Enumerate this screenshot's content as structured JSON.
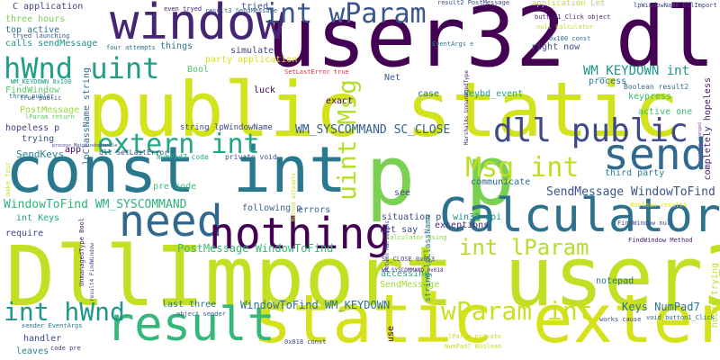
{
  "word_cloud": {
    "background": "#ffffff",
    "words": [
      {
        "text": "user32 dll",
        "color": "#440154"
      },
      {
        "text": "DllImport user32",
        "color": "#c2df23"
      },
      {
        "text": "public static",
        "color": "#d2e21b"
      },
      {
        "text": "static extern",
        "color": "#d5e21a"
      },
      {
        "text": "const int",
        "color": "#2a788e"
      },
      {
        "text": "p p",
        "color": "#7ad151"
      },
      {
        "text": "Calculator",
        "color": "#2c718e"
      },
      {
        "text": "window",
        "color": "#482475"
      },
      {
        "text": "result",
        "color": "#35b779"
      },
      {
        "text": "need",
        "color": "#31688e"
      },
      {
        "text": "nothing",
        "color": "#440154"
      },
      {
        "text": "extern int",
        "color": "#22a785"
      },
      {
        "text": "send",
        "color": "#31688e"
      },
      {
        "text": "dll public",
        "color": "#3e4989"
      },
      {
        "text": "Msg int",
        "color": "#bddf26"
      },
      {
        "text": "int wParam",
        "color": "#3a548c"
      },
      {
        "text": "hWnd uint",
        "color": "#1f9f88"
      },
      {
        "text": "int hWnd",
        "color": "#1f968b"
      },
      {
        "text": "wParam int",
        "color": "#c8e020"
      },
      {
        "text": "int lParam",
        "color": "#b5de2b"
      },
      {
        "text": "uint Msg",
        "color": "#b5de2b"
      },
      {
        "text": "WM_KEYDOWN int",
        "color": "#1f958b"
      },
      {
        "text": "WM_SYSCOMMAND SC_CLOSE",
        "color": "#355f8d"
      },
      {
        "text": "SendMessage WindowToFind",
        "color": "#3b528b"
      },
      {
        "text": "WindowToFind WM_SYSCOMMAND",
        "color": "#2eb37c"
      },
      {
        "text": "WindowToFind WM_KEYDOWN",
        "color": "#2d708e"
      },
      {
        "text": "PostMessage WindowToFind",
        "color": "#38b977"
      },
      {
        "text": "Keys NumPad7",
        "color": "#2c728e"
      },
      {
        "text": "SendKeys",
        "color": "#26828e"
      },
      {
        "text": "C application",
        "color": "#404688"
      },
      {
        "text": "three hours",
        "color": "#77d153"
      },
      {
        "text": "top active",
        "color": "#2d718e"
      },
      {
        "text": "calls sendMessage",
        "color": "#20928c"
      },
      {
        "text": "FindWindow",
        "color": "#58c765"
      },
      {
        "text": "PostMessage",
        "color": "#9bd93c"
      },
      {
        "text": "hopeless p",
        "color": "#424086"
      },
      {
        "text": "trying",
        "color": "#3b528b"
      },
      {
        "text": "int Keys",
        "color": "#22a785"
      },
      {
        "text": "require",
        "color": "#414487"
      },
      {
        "text": "handler",
        "color": "#3e4989"
      },
      {
        "text": "leaves",
        "color": "#26828e"
      },
      {
        "text": "lpClassName string",
        "color": "#31688e"
      },
      {
        "text": "Bool",
        "color": "#54c568"
      },
      {
        "text": "luck",
        "color": "#440154"
      },
      {
        "text": "simulate",
        "color": "#404688"
      },
      {
        "text": "things",
        "color": "#2a788e"
      },
      {
        "text": "party application",
        "color": "#d8e219"
      },
      {
        "text": "exact",
        "color": "#440154"
      },
      {
        "text": "tried",
        "color": "#3b528b"
      },
      {
        "text": "application Let",
        "color": "#c2df23"
      },
      {
        "text": "Net",
        "color": "#355f8d"
      },
      {
        "text": "case",
        "color": "#2d708e"
      },
      {
        "text": "keybd_event",
        "color": "#1fa187"
      },
      {
        "text": "right now",
        "color": "#3b528b"
      },
      {
        "text": "process",
        "color": "#2c728e"
      },
      {
        "text": "keypress",
        "color": "#38b977"
      },
      {
        "text": "active one",
        "color": "#3bbb75"
      },
      {
        "text": "Boolean result2",
        "color": "#31688e"
      },
      {
        "text": "completely hopeless",
        "color": "#481a6c"
      },
      {
        "text": "third party",
        "color": "#26828e"
      },
      {
        "text": "communicate",
        "color": "#31688e"
      },
      {
        "text": "win32 api",
        "color": "#20928c"
      },
      {
        "text": "exceptions",
        "color": "#472d7b"
      },
      {
        "text": "errors",
        "color": "#33638d"
      },
      {
        "text": "following p",
        "color": "#34608d"
      },
      {
        "text": "situation p",
        "color": "#3e4989"
      },
      {
        "text": "Let say",
        "color": "#3e4989"
      },
      {
        "text": "accessing",
        "color": "#22a785"
      },
      {
        "text": "notepad",
        "color": "#2c728e"
      },
      {
        "text": "see",
        "color": "#3e4989"
      },
      {
        "text": "pre code",
        "color": "#3bbb75"
      },
      {
        "text": "last three",
        "color": "#2a788e"
      },
      {
        "text": "SendMessage",
        "color": "#a2da37"
      },
      {
        "text": "use",
        "color": "#440154"
      },
      {
        "text": "string lpWindowName",
        "color": "#3e4989"
      },
      {
        "text": "dll SetLastError",
        "color": "#414487"
      },
      {
        "text": "NumPad7 code",
        "color": "#22a785"
      },
      {
        "text": "private void",
        "color": "#39568c"
      },
      {
        "text": "app",
        "color": "#440154"
      },
      {
        "text": "FindWindow null",
        "color": "#3e4989"
      },
      {
        "text": "Boolean result4",
        "color": "#d8e219"
      },
      {
        "text": "FindWindow Method",
        "color": "#482475"
      },
      {
        "text": "hours trying",
        "color": "#b5de2b"
      },
      {
        "text": "void button1_Click",
        "color": "#2c728e"
      },
      {
        "text": "works cause",
        "color": "#3e4989"
      },
      {
        "text": "0x018 const",
        "color": "#414487"
      },
      {
        "text": "object sender",
        "color": "#355f8d"
      },
      {
        "text": "SC_CLOSE 0x053",
        "color": "#3e4989"
      },
      {
        "text": "WM_SYSCOMMAND 0x018",
        "color": "#482878"
      },
      {
        "text": "Calculator Using",
        "color": "#86d549"
      },
      {
        "text": "result2 PostMessage",
        "color": "#3e4989"
      },
      {
        "text": "lpWindowName DllImport",
        "color": "#414487"
      },
      {
        "text": "button1_Click object",
        "color": "#481f70"
      },
      {
        "text": "null Calculator",
        "color": "#c2df23"
      },
      {
        "text": "0x100 const",
        "color": "#31688e"
      },
      {
        "text": "EventArgs e",
        "color": "#2a788e"
      },
      {
        "text": "even tryed",
        "color": "#482173"
      },
      {
        "text": "result3 SendMessage",
        "color": "#33638d"
      },
      {
        "text": "tryed launching",
        "color": "#3b528b"
      },
      {
        "text": "three public",
        "color": "#2a788e"
      },
      {
        "text": "four attempts",
        "color": "#2c718e"
      },
      {
        "text": "SetLastError true",
        "color": "#ed2a3a"
      },
      {
        "text": "WM_KEYDOWN 0x100",
        "color": "#1f968b"
      },
      {
        "text": "true public",
        "color": "#3b528b"
      },
      {
        "text": "lParam return",
        "color": "#5ec962"
      },
      {
        "text": "process MainWindowHandle",
        "color": "#404688"
      },
      {
        "text": "return MarshalAs",
        "color": "#3e4989"
      },
      {
        "text": "MarshalAs UnmanagedType",
        "color": "#481f70"
      },
      {
        "text": "string lpClassName",
        "color": "#2a788e"
      },
      {
        "text": "UnmanagedType Bool",
        "color": "#481a6c"
      },
      {
        "text": "result4 FindWindow",
        "color": "#414487"
      },
      {
        "text": "sender EventArgs",
        "color": "#2a788e"
      },
      {
        "text": "code pre",
        "color": "#443983"
      },
      {
        "text": "lParam private",
        "color": "#c2df23"
      },
      {
        "text": "NumPad7 Boolean",
        "color": "#c2df23"
      },
      {
        "text": "nothing changed",
        "color": "#8e44ad"
      },
      {
        "text": "make four",
        "color": "#c2df23"
      },
      {
        "text": "Method attempts",
        "color": "#c2df23"
      }
    ]
  }
}
